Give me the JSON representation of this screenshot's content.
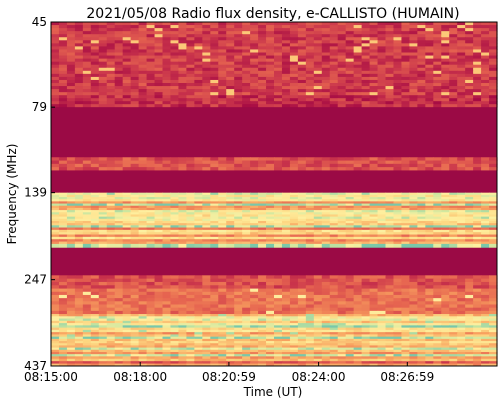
{
  "chart_data": {
    "type": "heatmap",
    "title": "2021/05/08  Radio flux density, e-CALLISTO (HUMAIN)",
    "xlabel": "Time (UT)",
    "ylabel": "Frequency (MHz)",
    "x_ticks": [
      "08:15:00",
      "08:18:00",
      "08:20:59",
      "08:24:00",
      "08:26:59"
    ],
    "x_tick_seconds": [
      0,
      180,
      359,
      540,
      719
    ],
    "x_range_seconds": [
      0,
      900
    ],
    "y_ticks": [
      "45",
      "79",
      "139",
      "247",
      "437"
    ],
    "y_axis_direction": "frequency increases downward",
    "colormap": "Spectral_r",
    "colors": {
      "background": "#9b0a45",
      "low_noise": "#b8304a",
      "moderate": "#e06850",
      "elevated": "#f5ad68",
      "high": "#fee99a",
      "peak": "#8fcfa4"
    },
    "bands": [
      {
        "f_start": 45,
        "f_end": 73,
        "level": "noise"
      },
      {
        "f_start": 73,
        "f_end": 79,
        "level": "low_noise"
      },
      {
        "f_start": 79,
        "f_end": 110,
        "level": "background"
      },
      {
        "f_start": 110,
        "f_end": 120,
        "level": "moderate_noise"
      },
      {
        "f_start": 120,
        "f_end": 139,
        "level": "background"
      },
      {
        "f_start": 139,
        "f_end": 175,
        "level": "high_striped"
      },
      {
        "f_start": 175,
        "f_end": 195,
        "level": "elevated_striped"
      },
      {
        "f_start": 195,
        "f_end": 200,
        "level": "peak_line"
      },
      {
        "f_start": 200,
        "f_end": 240,
        "level": "background"
      },
      {
        "f_start": 240,
        "f_end": 262,
        "level": "moderate_noise"
      },
      {
        "f_start": 262,
        "f_end": 310,
        "level": "elevated_noise"
      },
      {
        "f_start": 310,
        "f_end": 360,
        "level": "high_striped_with_peaks"
      },
      {
        "f_start": 360,
        "f_end": 410,
        "level": "high_striped"
      },
      {
        "f_start": 410,
        "f_end": 437,
        "level": "moderate_striped"
      }
    ]
  }
}
